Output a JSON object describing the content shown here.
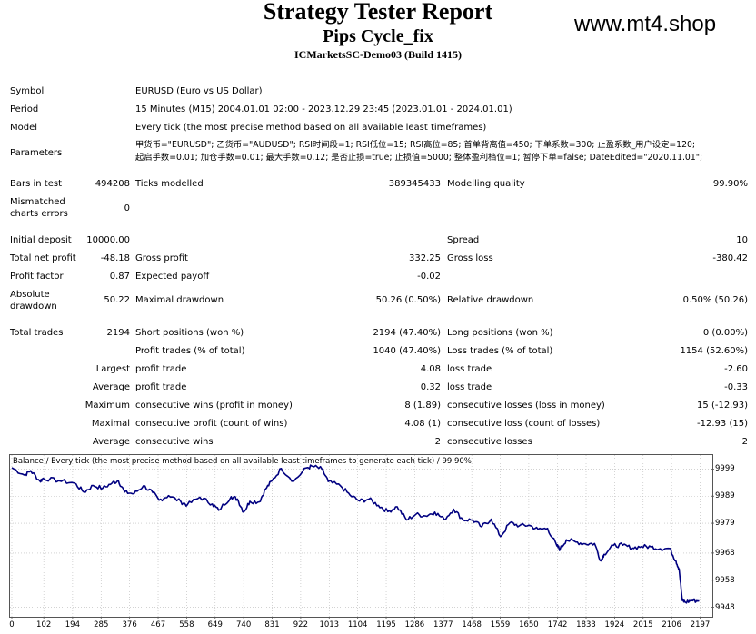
{
  "header": {
    "title": "Strategy Tester Report",
    "expert": "Pips Cycle_fix",
    "server": "ICMarketsSC-Demo03 (Build 1415)",
    "watermark": "www.mt4.shop"
  },
  "settings": {
    "symbol_label": "Symbol",
    "symbol_value": "EURUSD (Euro vs US Dollar)",
    "period_label": "Period",
    "period_value": "15 Minutes (M15) 2004.01.01 02:00 - 2023.12.29 23:45 (2023.01.01 - 2024.01.01)",
    "model_label": "Model",
    "model_value": "Every tick (the most precise method based on all available least timeframes)",
    "parameters_label": "Parameters",
    "parameters_line1": "甲货币=\"EURUSD\"; 乙货币=\"AUDUSD\"; RSI时间段=1; RSI低位=15; RSI高位=85; 首单背离值=450; 下单系数=300; 止盈系数_用户设定=120;",
    "parameters_line2": "起启手数=0.01; 加仓手数=0.01; 最大手数=0.12; 是否止损=true; 止损值=5000; 整体盈利档位=1; 暂停下单=false; DateEdited=\"2020.11.01\";"
  },
  "stats": {
    "bars_label": "Bars in test",
    "bars_value": "494208",
    "ticks_label": "Ticks modelled",
    "ticks_value": "389345433",
    "quality_label": "Modelling quality",
    "quality_value": "99.90%",
    "mismatch_label_1": "Mismatched",
    "mismatch_label_2": "charts errors",
    "mismatch_value": "0",
    "deposit_label": "Initial deposit",
    "deposit_value": "10000.00",
    "spread_label": "Spread",
    "spread_value": "10",
    "net_label": "Total net profit",
    "net_value": "-48.18",
    "gross_profit_label": "Gross profit",
    "gross_profit_value": "332.25",
    "gross_loss_label": "Gross loss",
    "gross_loss_value": "-380.42",
    "pf_label": "Profit factor",
    "pf_value": "0.87",
    "payoff_label": "Expected payoff",
    "payoff_value": "-0.02",
    "abs_dd_label_1": "Absolute",
    "abs_dd_label_2": "drawdown",
    "abs_dd_value": "50.22",
    "max_dd_label": "Maximal drawdown",
    "max_dd_value": "50.26 (0.50%)",
    "rel_dd_label": "Relative drawdown",
    "rel_dd_value": "0.50% (50.26)",
    "trades_label": "Total trades",
    "trades_value": "2194",
    "short_label": "Short positions (won %)",
    "short_value": "2194 (47.40%)",
    "long_label": "Long positions (won %)",
    "long_value": "0 (0.00%)",
    "ptrades_label": "Profit trades (% of total)",
    "ptrades_value": "1040 (47.40%)",
    "ltrades_label": "Loss trades (% of total)",
    "ltrades_value": "1154 (52.60%)",
    "largest_label": "Largest",
    "largest_pt_label": "profit trade",
    "largest_pt_value": "4.08",
    "largest_lt_label": "loss trade",
    "largest_lt_value": "-2.60",
    "average_label": "Average",
    "average_pt_label": "profit trade",
    "average_pt_value": "0.32",
    "average_lt_label": "loss trade",
    "average_lt_value": "-0.33",
    "maximum_label": "Maximum",
    "max_cw_label": "consecutive wins (profit in money)",
    "max_cw_value": "8 (1.89)",
    "max_cl_label": "consecutive losses (loss in money)",
    "max_cl_value": "15 (-12.93)",
    "maximal_label": "Maximal",
    "maximal_cp_label": "consecutive profit (count of wins)",
    "maximal_cp_value": "4.08 (1)",
    "maximal_cl_label": "consecutive loss (count of losses)",
    "maximal_cl_value": "-12.93 (15)",
    "avg_label": "Average",
    "avg_cw_label": "consecutive wins",
    "avg_cw_value": "2",
    "avg_cl_label": "consecutive losses",
    "avg_cl_value": "2"
  },
  "chart_data": {
    "type": "line",
    "title": "Balance / Every tick (the most precise method based on all available least timeframes to generate each tick) / 99.90%",
    "line_color": "#000080",
    "x_ticks": [
      "0",
      "102",
      "194",
      "285",
      "376",
      "467",
      "558",
      "649",
      "740",
      "831",
      "922",
      "1013",
      "1104",
      "1195",
      "1286",
      "1377",
      "1468",
      "1559",
      "1650",
      "1742",
      "1833",
      "1924",
      "2015",
      "2106",
      "2197"
    ],
    "y_ticks": [
      "9999",
      "9989",
      "9979",
      "9968",
      "9958",
      "9948"
    ],
    "xlim": [
      0,
      2210
    ],
    "ylim": [
      9945.5,
      10003.5
    ],
    "series": [
      {
        "x": [
          0,
          40,
          60,
          90,
          100,
          150,
          200,
          230,
          260,
          290,
          320,
          340,
          360,
          390,
          420,
          450,
          470,
          500,
          540,
          560,
          600,
          640,
          660,
          700,
          720,
          740,
          760,
          790,
          810,
          830,
          860,
          900,
          940,
          960,
          990,
          1010,
          1050,
          1080,
          1110,
          1140,
          1170,
          1200,
          1230,
          1260,
          1290,
          1320,
          1350,
          1380,
          1410,
          1440,
          1470,
          1500,
          1530,
          1560,
          1590,
          1620,
          1650,
          1680,
          1710,
          1740,
          1750,
          1770,
          1800,
          1830,
          1860,
          1880,
          1890,
          1920,
          1950,
          1980,
          2010,
          2040,
          2070,
          2100,
          2120,
          2130,
          2140,
          2150,
          2170,
          2194
        ],
        "y": [
          9999.5,
          9996.8,
          9998.4,
          9994.5,
          9995.6,
          9994.7,
          9993.8,
          9990.5,
          9992.9,
          9991.9,
          9993.8,
          9994.8,
          9990.5,
          9989.9,
          9992.8,
          9990.3,
          9987.5,
          9989.2,
          9986.9,
          9985.8,
          9988.6,
          9986.1,
          9983.8,
          9988.8,
          9987.9,
          9983.1,
          9987.1,
          9986.9,
          9991.6,
          9994.6,
          9999.2,
          9994.5,
          9999.4,
          10000.0,
          9999.0,
          9994.4,
          9992.7,
          9989.3,
          9987.2,
          9987.9,
          9985.6,
          9983.3,
          9985.1,
          9980.2,
          9982.3,
          9981.7,
          9983.1,
          9980.4,
          9984.2,
          9980.3,
          9980.2,
          9977.7,
          9980.5,
          9974.1,
          9979.2,
          9978.1,
          9978.3,
          9976.7,
          9977.1,
          9970.6,
          9969.4,
          9972.9,
          9972.1,
          9971.4,
          9971.5,
          9965.1,
          9967.5,
          9970.8,
          9970.9,
          9969.9,
          9970.4,
          9970.3,
          9969.6,
          9969.7,
          9965.0,
          9962.2,
          9950.5,
          9949.9,
          9950.5,
          9950.4
        ]
      }
    ]
  }
}
